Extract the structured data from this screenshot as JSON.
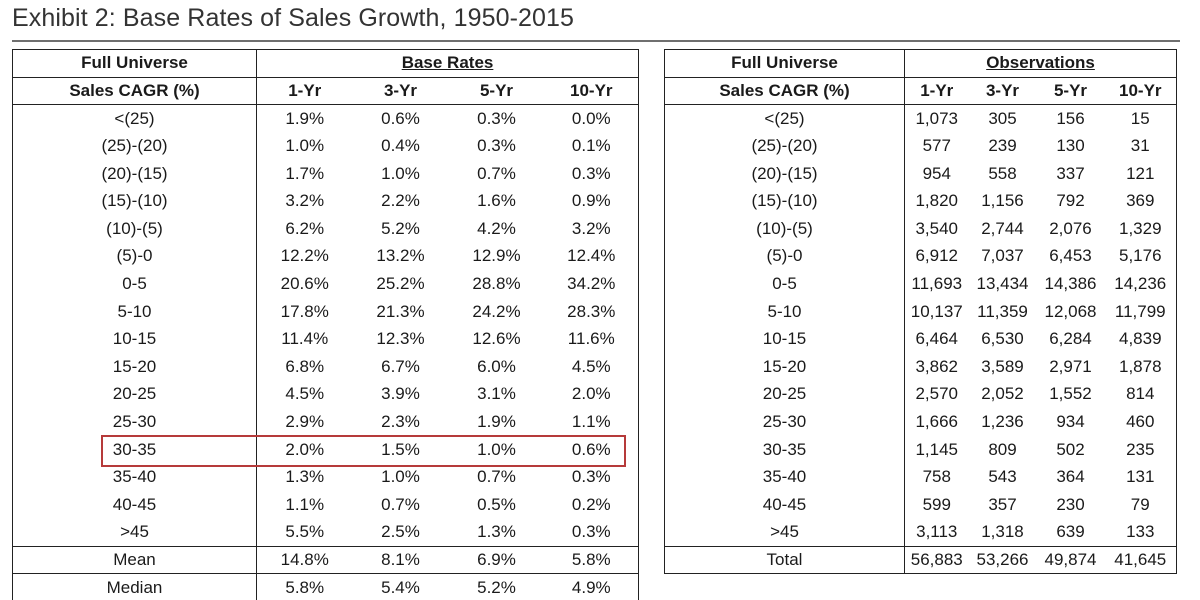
{
  "title": "Exhibit 2: Base Rates of Sales Growth, 1950-2015",
  "left": {
    "corner_top": "Full Universe",
    "corner_sub": "Sales CAGR (%)",
    "group_label": "Base Rates",
    "columns": [
      "1-Yr",
      "3-Yr",
      "5-Yr",
      "10-Yr"
    ],
    "rows": [
      {
        "label": "<(25)",
        "values": [
          "1.9%",
          "0.6%",
          "0.3%",
          "0.0%"
        ]
      },
      {
        "label": "(25)-(20)",
        "values": [
          "1.0%",
          "0.4%",
          "0.3%",
          "0.1%"
        ]
      },
      {
        "label": "(20)-(15)",
        "values": [
          "1.7%",
          "1.0%",
          "0.7%",
          "0.3%"
        ]
      },
      {
        "label": "(15)-(10)",
        "values": [
          "3.2%",
          "2.2%",
          "1.6%",
          "0.9%"
        ]
      },
      {
        "label": "(10)-(5)",
        "values": [
          "6.2%",
          "5.2%",
          "4.2%",
          "3.2%"
        ]
      },
      {
        "label": "(5)-0",
        "values": [
          "12.2%",
          "13.2%",
          "12.9%",
          "12.4%"
        ]
      },
      {
        "label": "0-5",
        "values": [
          "20.6%",
          "25.2%",
          "28.8%",
          "34.2%"
        ]
      },
      {
        "label": "5-10",
        "values": [
          "17.8%",
          "21.3%",
          "24.2%",
          "28.3%"
        ]
      },
      {
        "label": "10-15",
        "values": [
          "11.4%",
          "12.3%",
          "12.6%",
          "11.6%"
        ]
      },
      {
        "label": "15-20",
        "values": [
          "6.8%",
          "6.7%",
          "6.0%",
          "4.5%"
        ]
      },
      {
        "label": "20-25",
        "values": [
          "4.5%",
          "3.9%",
          "3.1%",
          "2.0%"
        ]
      },
      {
        "label": "25-30",
        "values": [
          "2.9%",
          "2.3%",
          "1.9%",
          "1.1%"
        ]
      },
      {
        "label": "30-35",
        "values": [
          "2.0%",
          "1.5%",
          "1.0%",
          "0.6%"
        ]
      },
      {
        "label": "35-40",
        "values": [
          "1.3%",
          "1.0%",
          "0.7%",
          "0.3%"
        ]
      },
      {
        "label": "40-45",
        "values": [
          "1.1%",
          "0.7%",
          "0.5%",
          "0.2%"
        ]
      },
      {
        "label": ">45",
        "values": [
          "5.5%",
          "2.5%",
          "1.3%",
          "0.3%"
        ]
      }
    ],
    "footer": [
      {
        "label": "Mean",
        "values": [
          "14.8%",
          "8.1%",
          "6.9%",
          "5.8%"
        ]
      },
      {
        "label": "Median",
        "values": [
          "5.8%",
          "5.4%",
          "5.2%",
          "4.9%"
        ]
      }
    ]
  },
  "right": {
    "corner_top": "Full Universe",
    "corner_sub": "Sales CAGR (%)",
    "group_label": "Observations",
    "columns": [
      "1-Yr",
      "3-Yr",
      "5-Yr",
      "10-Yr"
    ],
    "rows": [
      {
        "label": "<(25)",
        "values": [
          "1,073",
          "305",
          "156",
          "15"
        ]
      },
      {
        "label": "(25)-(20)",
        "values": [
          "577",
          "239",
          "130",
          "31"
        ]
      },
      {
        "label": "(20)-(15)",
        "values": [
          "954",
          "558",
          "337",
          "121"
        ]
      },
      {
        "label": "(15)-(10)",
        "values": [
          "1,820",
          "1,156",
          "792",
          "369"
        ]
      },
      {
        "label": "(10)-(5)",
        "values": [
          "3,540",
          "2,744",
          "2,076",
          "1,329"
        ]
      },
      {
        "label": "(5)-0",
        "values": [
          "6,912",
          "7,037",
          "6,453",
          "5,176"
        ]
      },
      {
        "label": "0-5",
        "values": [
          "11,693",
          "13,434",
          "14,386",
          "14,236"
        ]
      },
      {
        "label": "5-10",
        "values": [
          "10,137",
          "11,359",
          "12,068",
          "11,799"
        ]
      },
      {
        "label": "10-15",
        "values": [
          "6,464",
          "6,530",
          "6,284",
          "4,839"
        ]
      },
      {
        "label": "15-20",
        "values": [
          "3,862",
          "3,589",
          "2,971",
          "1,878"
        ]
      },
      {
        "label": "20-25",
        "values": [
          "2,570",
          "2,052",
          "1,552",
          "814"
        ]
      },
      {
        "label": "25-30",
        "values": [
          "1,666",
          "1,236",
          "934",
          "460"
        ]
      },
      {
        "label": "30-35",
        "values": [
          "1,145",
          "809",
          "502",
          "235"
        ]
      },
      {
        "label": "35-40",
        "values": [
          "758",
          "543",
          "364",
          "131"
        ]
      },
      {
        "label": "40-45",
        "values": [
          "599",
          "357",
          "230",
          "79"
        ]
      },
      {
        "label": ">45",
        "values": [
          "3,113",
          "1,318",
          "639",
          "133"
        ]
      }
    ],
    "footer": [
      {
        "label": "Total",
        "values": [
          "56,883",
          "53,266",
          "49,874",
          "41,645"
        ]
      }
    ]
  },
  "highlight_color": "#b63a3a"
}
